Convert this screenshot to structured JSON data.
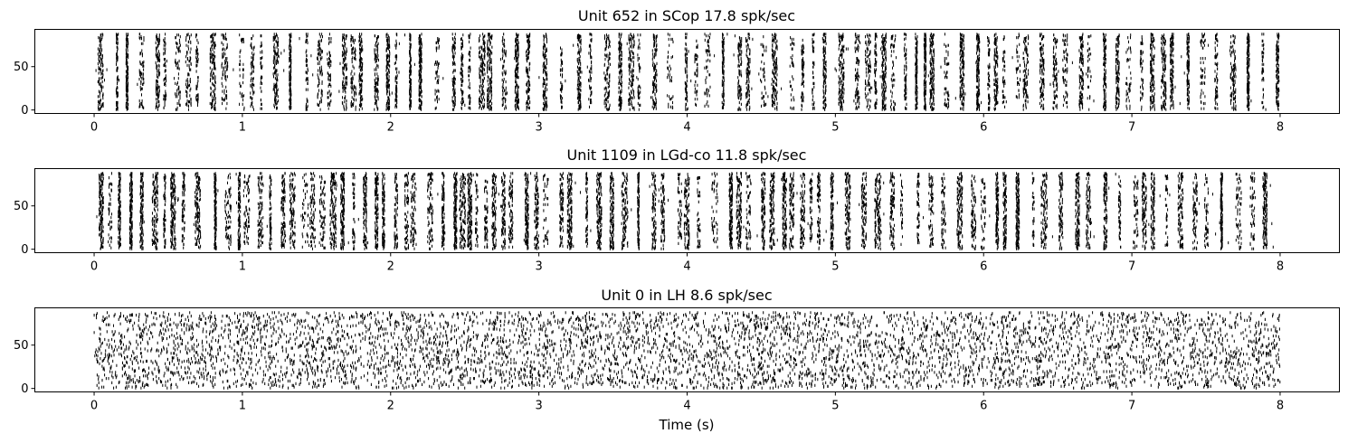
{
  "chart_data": [
    {
      "type": "scatter",
      "title": "Unit 652 in SCop 17.8 spk/sec",
      "xlim": [
        -0.4,
        8.4
      ],
      "ylim": [
        -4,
        93
      ],
      "xticks": [
        0,
        1,
        2,
        3,
        4,
        5,
        6,
        7,
        8
      ],
      "yticks": [
        0,
        50
      ],
      "rate": 17.8,
      "pattern": "striped"
    },
    {
      "type": "scatter",
      "title": "Unit 1109 in LGd-co 11.8 spk/sec",
      "xlim": [
        -0.4,
        8.4
      ],
      "ylim": [
        -4,
        93
      ],
      "xticks": [
        0,
        1,
        2,
        3,
        4,
        5,
        6,
        7,
        8
      ],
      "yticks": [
        0,
        50
      ],
      "rate": 11.8,
      "pattern": "striped"
    },
    {
      "type": "scatter",
      "title": "Unit 0 in LH 8.6 spk/sec",
      "xlim": [
        -0.4,
        8.4
      ],
      "ylim": [
        -4,
        93
      ],
      "xticks": [
        0,
        1,
        2,
        3,
        4,
        5,
        6,
        7,
        8
      ],
      "yticks": [
        0,
        50
      ],
      "rate": 8.6,
      "pattern": "uniform"
    }
  ],
  "xlabel": "Time (s)"
}
